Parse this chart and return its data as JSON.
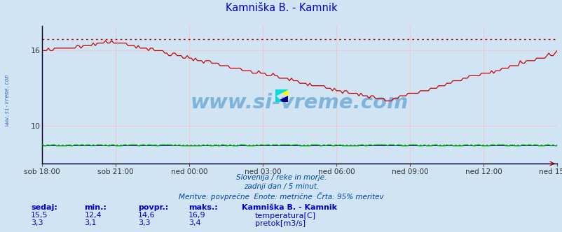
{
  "title": "Kamniška B. - Kamnik",
  "title_color": "#0000cc",
  "bg_color": "#d0e4f4",
  "plot_bg_color": "#d0e4f4",
  "x_labels": [
    "sob 18:00",
    "sob 21:00",
    "ned 00:00",
    "ned 03:00",
    "ned 06:00",
    "ned 09:00",
    "ned 12:00",
    "ned 15:00"
  ],
  "x_ticks_count": 8,
  "total_points": 252,
  "ylim_temp": [
    7.0,
    18.0
  ],
  "yticks_temp": [
    10,
    16
  ],
  "grid_color": "#ffbbbb",
  "temp_color": "#cc0000",
  "flow_color": "#00aa00",
  "flow_dot_color": "#0000aa",
  "spine_color": "#0000bb",
  "max_temp": 16.9,
  "subtitle1": "Slovenija / reke in morje.",
  "subtitle2": "zadnji dan / 5 minut.",
  "subtitle3": "Meritve: povprečne  Enote: metrične  Črta: 95% meritev",
  "subtitle_color": "#0044aa",
  "legend_title": "Kamniška B. - Kamnik",
  "legend_items": [
    {
      "label": "temperatura[C]",
      "color": "#cc0000"
    },
    {
      "label": "pretok[m3/s]",
      "color": "#00aa00"
    }
  ],
  "stats_headers": [
    "sedaj:",
    "min.:",
    "povpr.:",
    "maks.:"
  ],
  "stats_temp": [
    "15,5",
    "12,4",
    "14,6",
    "16,9"
  ],
  "stats_flow": [
    "3,3",
    "3,1",
    "3,3",
    "3,4"
  ],
  "watermark": "www.si-vreme.com",
  "watermark_color": "#5599cc",
  "left_label": "www.si-vreme.com",
  "left_label_color": "#4477bb",
  "flow_ylim": [
    0,
    25
  ],
  "flow_value": 3.3,
  "flow_max_dotted": 3.4
}
